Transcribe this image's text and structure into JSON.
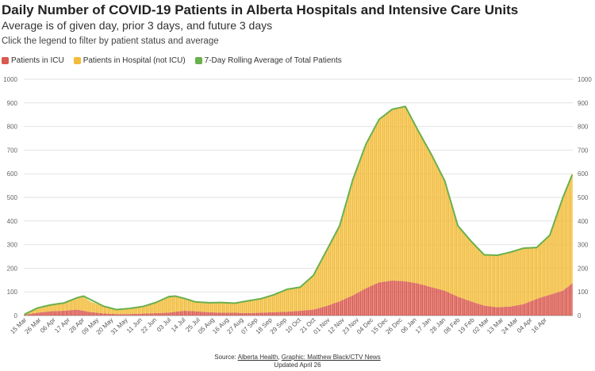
{
  "header": {
    "title": "Daily Number of COVID-19 Patients in Alberta Hospitals and Intensive Care Units",
    "subtitle": "Average is of given day, prior 3 days, and future 3 days",
    "note": "Click the legend to filter by patient status and average"
  },
  "legend": [
    {
      "label": "Patients in ICU",
      "color": "#d9594f"
    },
    {
      "label": "Patients in Hospital (not ICU)",
      "color": "#f2bc3a"
    },
    {
      "label": "7-Day Rolling Average of Total Patients",
      "color": "#6ab04c"
    }
  ],
  "footer": {
    "source_prefix": "Source: ",
    "source_link": "Alberta Health",
    "separator": ", ",
    "graphic_link": "Graphic: Matthew Black/CTV News",
    "updated": "Updated April 26"
  },
  "chart_data": {
    "type": "bar",
    "stacked": true,
    "x_tick_labels": [
      "15 Mar",
      "26 Mar",
      "06 Apr",
      "17 Apr",
      "28 Apr",
      "09 May",
      "20 May",
      "31 May",
      "11 Jun",
      "22 Jun",
      "03 Jul",
      "14 Jul",
      "25 Jul",
      "05 Aug",
      "16 Aug",
      "27 Aug",
      "07 Sep",
      "18 Sep",
      "29 Sep",
      "10 Oct",
      "21 Oct",
      "01 Nov",
      "12 Nov",
      "23 Nov",
      "04 Dec",
      "15 Dec",
      "26 Dec",
      "06 Jan",
      "17 Jan",
      "28 Jan",
      "08 Feb",
      "19 Feb",
      "02 Mar",
      "13 Mar",
      "24 Mar",
      "04 Apr",
      "16 Apr"
    ],
    "tick_step_days": 11,
    "y_ticks": [
      0,
      100,
      200,
      300,
      400,
      500,
      600,
      700,
      800,
      900,
      1000
    ],
    "ylim": [
      0,
      1000
    ],
    "grid": true,
    "legend_position": "top-left",
    "series": [
      {
        "name": "Patients in ICU",
        "color": "#d9594f",
        "keyframes_day_value": [
          [
            0,
            3
          ],
          [
            10,
            12
          ],
          [
            20,
            18
          ],
          [
            30,
            20
          ],
          [
            40,
            25
          ],
          [
            50,
            15
          ],
          [
            60,
            9
          ],
          [
            70,
            6
          ],
          [
            80,
            6
          ],
          [
            90,
            8
          ],
          [
            100,
            10
          ],
          [
            110,
            12
          ],
          [
            115,
            16
          ],
          [
            122,
            20
          ],
          [
            130,
            18
          ],
          [
            140,
            14
          ],
          [
            150,
            12
          ],
          [
            160,
            12
          ],
          [
            170,
            10
          ],
          [
            180,
            12
          ],
          [
            190,
            14
          ],
          [
            200,
            16
          ],
          [
            210,
            20
          ],
          [
            220,
            25
          ],
          [
            230,
            40
          ],
          [
            240,
            60
          ],
          [
            250,
            85
          ],
          [
            260,
            115
          ],
          [
            270,
            140
          ],
          [
            280,
            148
          ],
          [
            290,
            145
          ],
          [
            300,
            135
          ],
          [
            310,
            120
          ],
          [
            320,
            105
          ],
          [
            330,
            80
          ],
          [
            340,
            60
          ],
          [
            350,
            42
          ],
          [
            360,
            35
          ],
          [
            370,
            38
          ],
          [
            380,
            48
          ],
          [
            390,
            70
          ],
          [
            400,
            88
          ],
          [
            410,
            105
          ],
          [
            417,
            135
          ]
        ]
      },
      {
        "name": "Patients in Hospital (not ICU)",
        "color": "#f2bc3a",
        "keyframes_day_value": [
          [
            0,
            2
          ],
          [
            10,
            20
          ],
          [
            20,
            27
          ],
          [
            30,
            33
          ],
          [
            40,
            50
          ],
          [
            45,
            60
          ],
          [
            50,
            45
          ],
          [
            60,
            30
          ],
          [
            70,
            19
          ],
          [
            80,
            24
          ],
          [
            90,
            30
          ],
          [
            100,
            45
          ],
          [
            110,
            68
          ],
          [
            115,
            66
          ],
          [
            122,
            52
          ],
          [
            130,
            40
          ],
          [
            140,
            40
          ],
          [
            150,
            43
          ],
          [
            160,
            40
          ],
          [
            170,
            52
          ],
          [
            180,
            59
          ],
          [
            190,
            74
          ],
          [
            200,
            95
          ],
          [
            210,
            100
          ],
          [
            220,
            145
          ],
          [
            230,
            235
          ],
          [
            240,
            320
          ],
          [
            250,
            490
          ],
          [
            260,
            610
          ],
          [
            270,
            690
          ],
          [
            280,
            725
          ],
          [
            290,
            740
          ],
          [
            300,
            645
          ],
          [
            310,
            560
          ],
          [
            320,
            465
          ],
          [
            330,
            300
          ],
          [
            340,
            255
          ],
          [
            350,
            215
          ],
          [
            360,
            220
          ],
          [
            370,
            230
          ],
          [
            380,
            237
          ],
          [
            390,
            218
          ],
          [
            400,
            252
          ],
          [
            410,
            395
          ],
          [
            417,
            465
          ]
        ]
      },
      {
        "name": "7-Day Rolling Average of Total Patients",
        "color": "#6ab04c",
        "keyframes_day_value": [
          [
            0,
            5
          ],
          [
            10,
            32
          ],
          [
            20,
            45
          ],
          [
            30,
            53
          ],
          [
            40,
            75
          ],
          [
            45,
            82
          ],
          [
            50,
            68
          ],
          [
            60,
            40
          ],
          [
            70,
            25
          ],
          [
            80,
            30
          ],
          [
            90,
            38
          ],
          [
            100,
            55
          ],
          [
            110,
            80
          ],
          [
            115,
            82
          ],
          [
            122,
            72
          ],
          [
            130,
            58
          ],
          [
            140,
            54
          ],
          [
            150,
            55
          ],
          [
            160,
            52
          ],
          [
            170,
            62
          ],
          [
            180,
            71
          ],
          [
            190,
            88
          ],
          [
            200,
            111
          ],
          [
            210,
            120
          ],
          [
            220,
            170
          ],
          [
            230,
            275
          ],
          [
            240,
            380
          ],
          [
            250,
            575
          ],
          [
            260,
            725
          ],
          [
            270,
            830
          ],
          [
            280,
            873
          ],
          [
            290,
            885
          ],
          [
            300,
            780
          ],
          [
            310,
            680
          ],
          [
            320,
            570
          ],
          [
            330,
            380
          ],
          [
            340,
            315
          ],
          [
            350,
            257
          ],
          [
            360,
            255
          ],
          [
            370,
            268
          ],
          [
            380,
            285
          ],
          [
            390,
            288
          ],
          [
            400,
            340
          ],
          [
            410,
            500
          ],
          [
            417,
            595
          ]
        ]
      }
    ]
  }
}
